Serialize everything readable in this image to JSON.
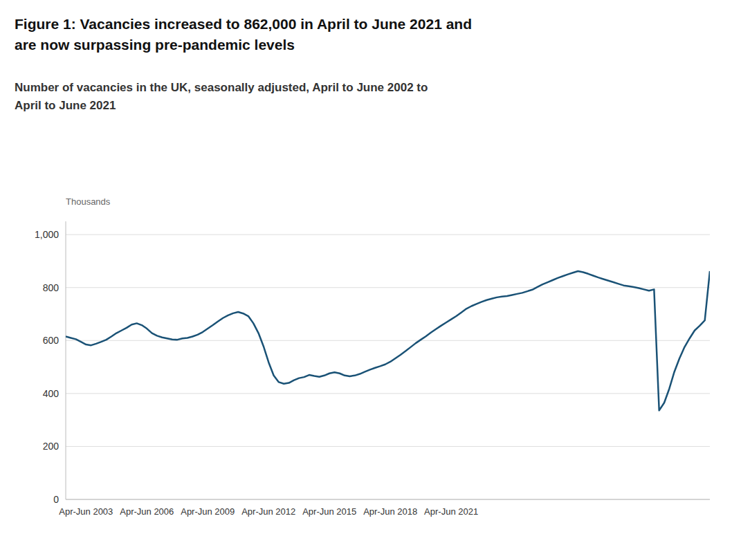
{
  "chart_data": {
    "type": "line",
    "title": [
      "Figure 1: Vacancies increased to 862,000 in April to June 2021 and",
      "are now surpassing pre-pandemic levels"
    ],
    "subtitle": [
      "Number of vacancies in the UK, seasonally adjusted, April to June 2002 to",
      "April to June 2021"
    ],
    "y_label": "Thousands",
    "color": "#1a5276",
    "grid": true,
    "ylim": [
      0,
      1050
    ],
    "yticks": [
      0,
      200,
      400,
      600,
      800,
      {
        "value": 1000,
        "label": "1,000"
      }
    ],
    "categories": [
      null,
      null,
      null,
      null,
      "Apr-Jun 2003",
      null,
      null,
      null,
      null,
      null,
      null,
      null,
      null,
      null,
      null,
      null,
      "Apr-Jun 2006",
      null,
      null,
      null,
      null,
      null,
      null,
      null,
      null,
      null,
      null,
      null,
      "Apr-Jun 2009",
      null,
      null,
      null,
      null,
      null,
      null,
      null,
      null,
      null,
      null,
      null,
      "Apr-Jun 2012",
      null,
      null,
      null,
      null,
      null,
      null,
      null,
      null,
      null,
      null,
      null,
      "Apr-Jun 2015",
      null,
      null,
      null,
      null,
      null,
      null,
      null,
      null,
      null,
      null,
      null,
      "Apr-Jun 2018",
      null,
      null,
      null,
      null,
      null,
      null,
      null,
      null,
      null,
      null,
      null,
      "Apr-Jun 2021",
      null,
      null,
      null,
      null,
      null,
      null,
      null,
      null,
      null,
      null,
      null,
      null,
      null,
      null,
      null,
      null,
      null,
      null,
      null,
      null,
      null,
      null,
      null,
      null,
      null,
      null,
      null,
      null,
      null,
      null,
      null,
      null,
      null,
      null,
      null,
      null,
      null,
      null,
      null,
      null,
      null,
      null,
      null,
      null,
      null,
      null,
      null,
      null,
      null,
      null,
      null
    ],
    "values": [
      615,
      610,
      605,
      595,
      585,
      582,
      588,
      595,
      603,
      615,
      628,
      638,
      648,
      660,
      665,
      658,
      645,
      628,
      618,
      612,
      608,
      604,
      603,
      608,
      610,
      615,
      622,
      632,
      645,
      658,
      672,
      685,
      695,
      703,
      708,
      702,
      692,
      665,
      628,
      578,
      518,
      468,
      443,
      437,
      440,
      450,
      458,
      462,
      470,
      466,
      463,
      468,
      476,
      480,
      476,
      468,
      465,
      468,
      474,
      482,
      490,
      497,
      503,
      510,
      520,
      533,
      546,
      560,
      575,
      590,
      603,
      616,
      630,
      643,
      656,
      668,
      680,
      692,
      706,
      720,
      730,
      738,
      746,
      753,
      758,
      763,
      766,
      768,
      772,
      776,
      780,
      786,
      792,
      802,
      812,
      820,
      828,
      836,
      843,
      850,
      856,
      862,
      858,
      852,
      845,
      838,
      832,
      826,
      820,
      814,
      808,
      805,
      802,
      798,
      793,
      788,
      793,
      336,
      365,
      418,
      482,
      532,
      575,
      608,
      638,
      656,
      676,
      862
    ]
  }
}
